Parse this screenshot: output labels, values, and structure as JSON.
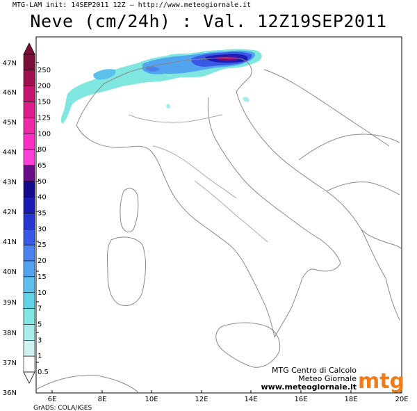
{
  "header": {
    "init_line": "MTG-LAM init: 14SEP2011 12Z — http://www.meteogiornale.it",
    "title": "Neve (cm/24h) : Val. 12Z19SEP2011"
  },
  "legend": {
    "levels": [
      {
        "label": "250",
        "color": "#7a0f3a"
      },
      {
        "label": "200",
        "color": "#a0104e"
      },
      {
        "label": "150",
        "color": "#c81572"
      },
      {
        "label": "125",
        "color": "#dd1e8c"
      },
      {
        "label": "100",
        "color": "#ee2aa8"
      },
      {
        "label": "80",
        "color": "#ff2fc6"
      },
      {
        "label": "65",
        "color": "#ff3fd8"
      },
      {
        "label": "50",
        "color": "#6a0d8a"
      },
      {
        "label": "40",
        "color": "#140a8c"
      },
      {
        "label": "35",
        "color": "#1c1cb4"
      },
      {
        "label": "30",
        "color": "#2636d2"
      },
      {
        "label": "25",
        "color": "#3a58e6"
      },
      {
        "label": "20",
        "color": "#4a82ee"
      },
      {
        "label": "15",
        "color": "#52a4f0"
      },
      {
        "label": "10",
        "color": "#5cc0ec"
      },
      {
        "label": "7",
        "color": "#62d2e6"
      },
      {
        "label": "5",
        "color": "#7fe6e0"
      },
      {
        "label": "3",
        "color": "#a6ecea"
      },
      {
        "label": "1",
        "color": "#cdf2f0"
      },
      {
        "label": "0.5",
        "color": "#ffffff"
      }
    ]
  },
  "axes": {
    "lat_labels": [
      "47N",
      "46N",
      "45N",
      "44N",
      "43N",
      "42N",
      "41N",
      "40N",
      "39N",
      "38N",
      "37N",
      "36N"
    ],
    "lon_labels": [
      "6E",
      "8E",
      "10E",
      "12E",
      "14E",
      "16E",
      "18E",
      "20E"
    ]
  },
  "credit": {
    "line1": "MTG Centro di Calcolo",
    "line2": "Meteo Giornale",
    "url": "www.meteogiornale.it",
    "logo": "mtg",
    "logo_color": "#f07d1a"
  },
  "footer": {
    "grads": "GrADS: COLA/IGES"
  }
}
